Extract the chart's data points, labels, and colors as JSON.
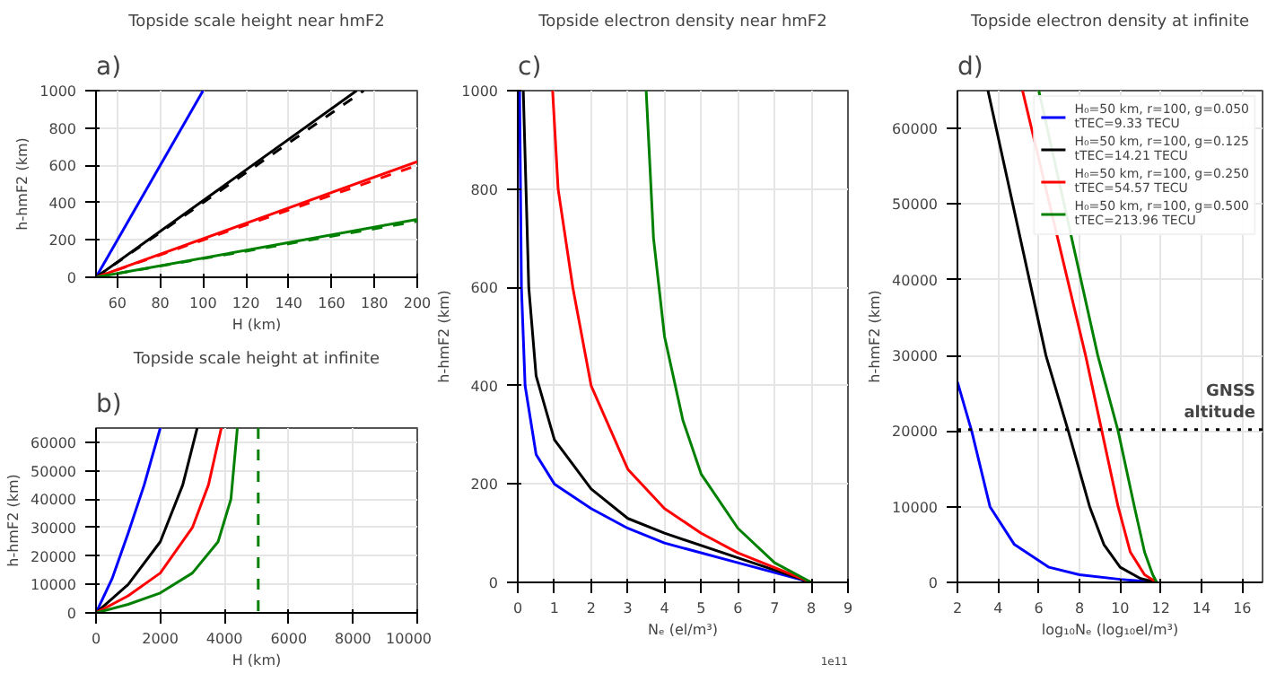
{
  "chart_data": [
    {
      "type": "line",
      "title": "Topside scale height near hmF2",
      "xlabel": "H (km)",
      "ylabel": "h-hmF2 (km)",
      "annotations": [
        "a)"
      ],
      "xlim": [
        50,
        200
      ],
      "xticks": [
        60,
        80,
        100,
        120,
        140,
        160,
        180,
        200
      ],
      "ylim": [
        0,
        1000
      ],
      "yticks": [
        0,
        200,
        400,
        600,
        800,
        1000
      ],
      "grid": true,
      "series": [
        {
          "color": "#0000ff",
          "x": [
            50,
            100
          ],
          "values": [
            0,
            1000
          ]
        },
        {
          "color": "#000000",
          "x": [
            50,
            171.7
          ],
          "values": [
            0,
            1000
          ]
        },
        {
          "color": "#000000",
          "x": [
            50,
            175
          ],
          "values": [
            0,
            1000
          ],
          "line_style": "dashed"
        },
        {
          "color": "#ff0000",
          "x": [
            50,
            200
          ],
          "values": [
            0,
            620
          ]
        },
        {
          "color": "#ff0000",
          "x": [
            50,
            200
          ],
          "values": [
            0,
            600
          ],
          "line_style": "dashed"
        },
        {
          "color": "#008000",
          "x": [
            50,
            200
          ],
          "values": [
            0,
            310
          ]
        },
        {
          "color": "#008000",
          "x": [
            50,
            200
          ],
          "values": [
            0,
            300
          ],
          "line_style": "dashed"
        }
      ]
    },
    {
      "type": "line",
      "title": "Topside scale height at infinite",
      "xlabel": "H (km)",
      "ylabel": "h-hmF2 (km)",
      "annotations": [
        "b)"
      ],
      "xlim": [
        0,
        10000
      ],
      "xticks": [
        0,
        2000,
        4000,
        6000,
        8000,
        10000
      ],
      "ylim": [
        0,
        65000
      ],
      "yticks": [
        0,
        10000,
        20000,
        30000,
        40000,
        50000,
        60000
      ],
      "grid": true,
      "ref_lines": [
        {
          "axis": "x",
          "value": 5050,
          "color": "#008000",
          "line_style": "dashed"
        }
      ],
      "series": [
        {
          "color": "#0000ff",
          "x": [
            0,
            500,
            1000,
            1500,
            2000
          ],
          "values": [
            0,
            12000,
            28000,
            45000,
            65000
          ]
        },
        {
          "color": "#000000",
          "x": [
            0,
            1000,
            2000,
            2700,
            3150
          ],
          "values": [
            0,
            10000,
            25000,
            45000,
            65000
          ]
        },
        {
          "color": "#ff0000",
          "x": [
            0,
            1000,
            2000,
            3000,
            3500,
            3900
          ],
          "values": [
            0,
            6000,
            14000,
            30000,
            45000,
            65000
          ]
        },
        {
          "color": "#008000",
          "x": [
            0,
            1000,
            2000,
            3000,
            3800,
            4200,
            4400
          ],
          "values": [
            0,
            3000,
            7000,
            14000,
            25000,
            40000,
            65000
          ]
        }
      ]
    },
    {
      "type": "line",
      "title": "Topside electron density near hmF2",
      "xlabel": "Nₑ (el/m³)",
      "ylabel": "h-hmF2 (km)",
      "annotations": [
        "c)",
        "1e11"
      ],
      "xlim": [
        0,
        9
      ],
      "xticks": [
        0,
        1,
        2,
        3,
        4,
        5,
        6,
        7,
        8,
        9
      ],
      "ylim": [
        0,
        1000
      ],
      "yticks": [
        0,
        200,
        400,
        600,
        800,
        1000
      ],
      "grid": true,
      "series": [
        {
          "color": "#0000ff",
          "x": [
            8,
            6,
            4,
            3,
            2,
            1,
            0.5,
            0.2,
            0.1,
            0.05
          ],
          "values": [
            0,
            40,
            80,
            110,
            150,
            200,
            260,
            400,
            600,
            1000
          ]
        },
        {
          "color": "#000000",
          "x": [
            8,
            6,
            4,
            3,
            2,
            1,
            0.5,
            0.3,
            0.15
          ],
          "values": [
            0,
            50,
            100,
            130,
            190,
            290,
            420,
            600,
            1000
          ]
        },
        {
          "color": "#ff0000",
          "x": [
            8,
            6,
            5,
            4,
            3,
            2,
            1.5,
            1.1,
            0.95
          ],
          "values": [
            0,
            60,
            100,
            150,
            230,
            400,
            600,
            800,
            1000
          ]
        },
        {
          "color": "#008000",
          "x": [
            8,
            7,
            6,
            5,
            4.5,
            4,
            3.7,
            3.5
          ],
          "values": [
            0,
            40,
            110,
            220,
            330,
            500,
            700,
            1000
          ]
        }
      ]
    },
    {
      "type": "line",
      "title": "Topside electron density at infinite",
      "xlabel": "log₁₀Nₑ (log₁₀el/m³)",
      "ylabel": "h-hmF2 (km)",
      "annotations": [
        "d)"
      ],
      "xlim": [
        2,
        17
      ],
      "xticks": [
        2,
        4,
        6,
        8,
        10,
        12,
        14,
        16
      ],
      "ylim": [
        0,
        65000
      ],
      "yticks": [
        0,
        10000,
        20000,
        30000,
        40000,
        50000,
        60000
      ],
      "grid": true,
      "legend": "top right",
      "ref_lines": [
        {
          "axis": "y",
          "value": 20200,
          "label": "GNSS\naltitude",
          "color": "#000000",
          "line_style": "dotted"
        }
      ],
      "series": [
        {
          "name": "H₀=50 km, r=100, g=0.050\ntTEC=9.33 TECU",
          "color": "#0000ff",
          "x": [
            2,
            2.7,
            3.6,
            4.8,
            6.5,
            8,
            10,
            11.8
          ],
          "values": [
            26500,
            20000,
            10000,
            5000,
            2000,
            1000,
            400,
            0
          ]
        },
        {
          "name": "H₀=50 km, r=100, g=0.125\ntTEC=14.21 TECU",
          "color": "#000000",
          "x": [
            3.5,
            6.35,
            7.45,
            8.5,
            9.2,
            10,
            11,
            11.8
          ],
          "values": [
            65000,
            30000,
            20000,
            10000,
            5000,
            2000,
            500,
            0
          ]
        },
        {
          "name": "H₀=50 km, r=100, g=0.250\ntTEC=54.57 TECU",
          "color": "#ff0000",
          "x": [
            5.2,
            8.3,
            9.1,
            9.9,
            10.5,
            11.2,
            11.8
          ],
          "values": [
            65000,
            30000,
            20000,
            10000,
            4000,
            1000,
            0
          ]
        },
        {
          "name": "H₀=50 km, r=100, g=0.500\ntTEC=213.96 TECU",
          "color": "#008000",
          "x": [
            6.0,
            8.9,
            9.9,
            10.7,
            11.2,
            11.6,
            11.8
          ],
          "values": [
            65000,
            30000,
            20000,
            10000,
            4000,
            1000,
            0
          ]
        }
      ]
    }
  ]
}
